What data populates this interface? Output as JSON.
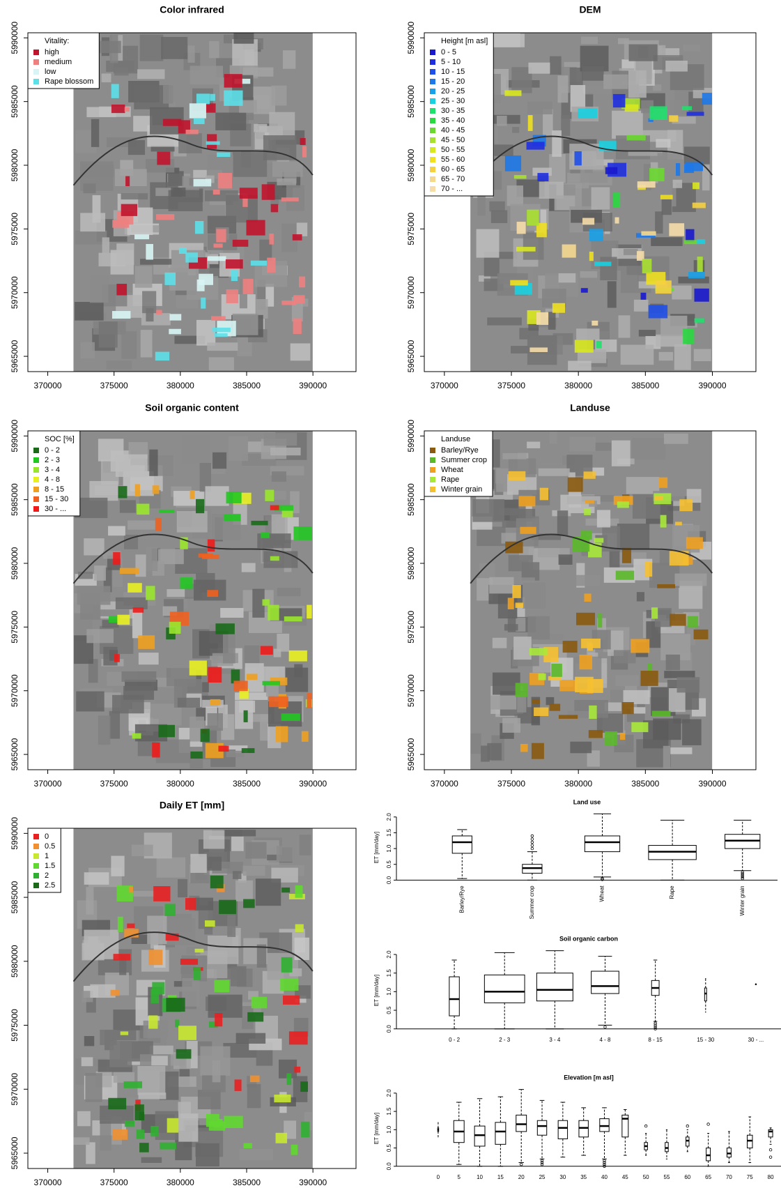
{
  "chart_data": [
    {
      "type": "map",
      "title": "Color infrared",
      "xlim": [
        368500,
        393250
      ],
      "ylim": [
        5963800,
        5990400
      ],
      "xticks": [
        370000,
        375000,
        380000,
        385000,
        390000
      ],
      "yticks": [
        5965000,
        5970000,
        5975000,
        5980000,
        5985000,
        5990000
      ],
      "legend_position": "topleft",
      "legend": {
        "title": "Vitality:",
        "entries": [
          {
            "label": "high",
            "color": "#c0142c"
          },
          {
            "label": "medium",
            "color": "#f08080"
          },
          {
            "label": "low",
            "color": "#d8f4f4"
          },
          {
            "label": "Rape blossom",
            "color": "#5ce0e8"
          }
        ]
      }
    },
    {
      "type": "map",
      "title": "DEM",
      "xlim": [
        368500,
        393250
      ],
      "ylim": [
        5963800,
        5990400
      ],
      "xticks": [
        370000,
        375000,
        380000,
        385000,
        390000
      ],
      "yticks": [
        5965000,
        5970000,
        5975000,
        5980000,
        5985000,
        5990000
      ],
      "legend_position": "topleft",
      "legend": {
        "title": "Height [m asl]",
        "entries": [
          {
            "label": "0 - 5",
            "color": "#1a1acd"
          },
          {
            "label": "5 - 10",
            "color": "#1f2fe0"
          },
          {
            "label": "10 - 15",
            "color": "#1f4fe8"
          },
          {
            "label": "15 - 20",
            "color": "#1e78e8"
          },
          {
            "label": "20 - 25",
            "color": "#1aa0e8"
          },
          {
            "label": "25 - 30",
            "color": "#1ad0e0"
          },
          {
            "label": "30 - 35",
            "color": "#1ee06a"
          },
          {
            "label": "35 - 40",
            "color": "#2ad840"
          },
          {
            "label": "40 - 45",
            "color": "#6ad830"
          },
          {
            "label": "45 - 50",
            "color": "#a8e030"
          },
          {
            "label": "50 - 55",
            "color": "#d8e820"
          },
          {
            "label": "55 - 60",
            "color": "#f0e020"
          },
          {
            "label": "60 - 65",
            "color": "#f5d040"
          },
          {
            "label": "65 - 70",
            "color": "#f5d890"
          },
          {
            "label": "70 - ...",
            "color": "#f5dca8"
          }
        ]
      }
    },
    {
      "type": "map",
      "title": "Soil organic content",
      "xlim": [
        368500,
        393250
      ],
      "ylim": [
        5963800,
        5990400
      ],
      "xticks": [
        370000,
        375000,
        380000,
        385000,
        390000
      ],
      "yticks": [
        5965000,
        5970000,
        5975000,
        5980000,
        5985000,
        5990000
      ],
      "legend_position": "topleft",
      "legend": {
        "title": "SOC [%]",
        "entries": [
          {
            "label": "0 - 2",
            "color": "#1a6a1a"
          },
          {
            "label": "2 - 3",
            "color": "#22c822"
          },
          {
            "label": "3 - 4",
            "color": "#9ae62e"
          },
          {
            "label": "4 - 8",
            "color": "#e8f020"
          },
          {
            "label": "8 - 15",
            "color": "#f0a020"
          },
          {
            "label": "15 - 30",
            "color": "#f06020"
          },
          {
            "label": "30 - ...",
            "color": "#f01a1a"
          }
        ]
      }
    },
    {
      "type": "map",
      "title": "Landuse",
      "xlim": [
        368500,
        393250
      ],
      "ylim": [
        5963800,
        5990400
      ],
      "xticks": [
        370000,
        375000,
        380000,
        385000,
        390000
      ],
      "yticks": [
        5965000,
        5970000,
        5975000,
        5980000,
        5985000,
        5990000
      ],
      "legend_position": "topleft",
      "legend": {
        "title": "Landuse",
        "entries": [
          {
            "label": "Barley/Rye",
            "color": "#8a5a10"
          },
          {
            "label": "Summer crop",
            "color": "#5ab82a"
          },
          {
            "label": "Wheat",
            "color": "#f0a020"
          },
          {
            "label": "Rape",
            "color": "#a8e838"
          },
          {
            "label": "Winter grain",
            "color": "#f5c030"
          }
        ]
      }
    },
    {
      "type": "map",
      "title": "Daily ET [mm]",
      "xlim": [
        368500,
        393250
      ],
      "ylim": [
        5963800,
        5990400
      ],
      "xticks": [
        370000,
        375000,
        380000,
        385000,
        390000
      ],
      "yticks": [
        5965000,
        5970000,
        5975000,
        5980000,
        5985000,
        5990000
      ],
      "legend_position": "topleft",
      "legend": {
        "entries": [
          {
            "label": "0",
            "color": "#e82020"
          },
          {
            "label": "0.5",
            "color": "#f09030"
          },
          {
            "label": "1",
            "color": "#c8e830"
          },
          {
            "label": "1.5",
            "color": "#60d830"
          },
          {
            "label": "2",
            "color": "#30b030"
          },
          {
            "label": "2.5",
            "color": "#1a6a1a"
          }
        ]
      }
    },
    {
      "type": "boxplot",
      "title": "Land use",
      "ylabel": "ET [mm/day]",
      "categories": [
        "Barley/Rye",
        "Summer crop",
        "Wheat",
        "Rape",
        "Winter grain"
      ],
      "boxes": [
        {
          "min": 0.05,
          "q1": 0.85,
          "median": 1.2,
          "q3": 1.4,
          "max": 1.6
        },
        {
          "min": 0.0,
          "q1": 0.22,
          "median": 0.38,
          "q3": 0.5,
          "max": 0.9,
          "outliers": [
            1.0,
            1.1,
            1.2,
            1.3,
            1.4
          ]
        },
        {
          "min": 0.1,
          "q1": 0.9,
          "median": 1.2,
          "q3": 1.4,
          "max": 2.1,
          "outliers": [
            0.02,
            0.05
          ]
        },
        {
          "min": 0.0,
          "q1": 0.65,
          "median": 0.9,
          "q3": 1.1,
          "max": 1.9
        },
        {
          "min": 0.3,
          "q1": 1.0,
          "median": 1.25,
          "q3": 1.45,
          "max": 1.9,
          "outliers": [
            0.05,
            0.1,
            0.15,
            0.2,
            0.25
          ]
        }
      ],
      "ylim": [
        -0.08,
        2.15
      ],
      "yticks": [
        {
          "value": 0,
          "label": "0.0"
        },
        {
          "value": 0.5,
          "label": "0.5"
        },
        {
          "value": 1,
          "label": "1.0"
        },
        {
          "value": 1.5,
          "label": "1.5"
        },
        {
          "value": 2,
          "label": "2.0"
        }
      ]
    },
    {
      "type": "boxplot",
      "title": "Soil organic carbon",
      "ylabel": "ET [mm/day]",
      "categories": [
        "0 - 2",
        "2 - 3",
        "3 - 4",
        "4 - 8",
        "8 - 15",
        "15 - 30",
        "30 - ..."
      ],
      "boxes": [
        {
          "min": 0.0,
          "q1": 0.35,
          "median": 0.8,
          "q3": 1.4,
          "max": 1.85
        },
        {
          "min": 0.0,
          "q1": 0.7,
          "median": 1.0,
          "q3": 1.45,
          "max": 2.05
        },
        {
          "min": 0.0,
          "q1": 0.75,
          "median": 1.05,
          "q3": 1.5,
          "max": 2.1
        },
        {
          "min": 0.1,
          "q1": 0.95,
          "median": 1.15,
          "q3": 1.55,
          "max": 1.95,
          "outliers": [
            0.05
          ]
        },
        {
          "min": 0.2,
          "q1": 0.9,
          "median": 1.1,
          "q3": 1.3,
          "max": 1.85,
          "outliers": [
            0.0,
            0.05,
            0.1,
            0.15
          ]
        },
        {
          "min": 0.45,
          "q1": 0.75,
          "median": 0.95,
          "q3": 1.1,
          "max": 1.35
        },
        {
          "min": 1.2,
          "q1": 1.2,
          "median": 1.2,
          "q3": 1.2,
          "max": 1.2
        }
      ],
      "ylim": [
        -0.08,
        2.15
      ],
      "yticks": [
        {
          "value": 0,
          "label": "0.0"
        },
        {
          "value": 0.5,
          "label": "0.5"
        },
        {
          "value": 1,
          "label": "1.0"
        },
        {
          "value": 1.5,
          "label": "1.5"
        },
        {
          "value": 2,
          "label": "2.0"
        }
      ]
    },
    {
      "type": "boxplot",
      "title": "Elevation [m asl]",
      "ylabel": "ET [mm/day]",
      "categories": [
        "0",
        "5",
        "10",
        "15",
        "20",
        "25",
        "30",
        "35",
        "40",
        "45",
        "50",
        "55",
        "60",
        "65",
        "70",
        "75",
        "80"
      ],
      "boxes": [
        {
          "min": 0.8,
          "q1": 0.95,
          "median": 1.0,
          "q3": 1.05,
          "max": 1.2
        },
        {
          "min": 0.05,
          "q1": 0.65,
          "median": 0.95,
          "q3": 1.25,
          "max": 1.75
        },
        {
          "min": 0.0,
          "q1": 0.55,
          "median": 0.85,
          "q3": 1.1,
          "max": 1.85
        },
        {
          "min": 0.0,
          "q1": 0.6,
          "median": 0.95,
          "q3": 1.2,
          "max": 1.9
        },
        {
          "min": 0.1,
          "q1": 0.95,
          "median": 1.15,
          "q3": 1.4,
          "max": 2.1,
          "outliers": [
            0.05
          ]
        },
        {
          "min": 0.2,
          "q1": 0.85,
          "median": 1.1,
          "q3": 1.25,
          "max": 1.8,
          "outliers": [
            0.05,
            0.1,
            0.15
          ]
        },
        {
          "min": 0.25,
          "q1": 0.75,
          "median": 1.05,
          "q3": 1.25,
          "max": 1.75
        },
        {
          "min": 0.3,
          "q1": 0.8,
          "median": 1.05,
          "q3": 1.25,
          "max": 1.6
        },
        {
          "min": 0.2,
          "q1": 0.95,
          "median": 1.1,
          "q3": 1.3,
          "max": 1.6,
          "outliers": [
            0.0,
            0.05,
            0.1,
            0.15
          ]
        },
        {
          "min": 0.3,
          "q1": 0.8,
          "median": 1.3,
          "q3": 1.4,
          "max": 1.55
        },
        {
          "min": 0.3,
          "q1": 0.45,
          "median": 0.55,
          "q3": 0.65,
          "max": 0.9,
          "outliers": [
            1.1
          ]
        },
        {
          "min": 0.2,
          "q1": 0.4,
          "median": 0.5,
          "q3": 0.65,
          "max": 1.0
        },
        {
          "min": 0.4,
          "q1": 0.55,
          "median": 0.7,
          "q3": 0.8,
          "max": 1.0,
          "outliers": [
            1.1
          ]
        },
        {
          "min": 0.0,
          "q1": 0.15,
          "median": 0.3,
          "q3": 0.5,
          "max": 0.9,
          "outliers": [
            1.15
          ]
        },
        {
          "min": 0.1,
          "q1": 0.25,
          "median": 0.35,
          "q3": 0.5,
          "max": 0.95
        },
        {
          "min": 0.1,
          "q1": 0.5,
          "median": 0.7,
          "q3": 0.85,
          "max": 1.35
        },
        {
          "min": 0.6,
          "q1": 0.8,
          "median": 0.95,
          "q3": 1.0,
          "max": 1.05,
          "outliers": [
            0.25,
            0.45
          ]
        }
      ],
      "ylim": [
        -0.08,
        2.15
      ],
      "yticks": [
        {
          "value": 0,
          "label": "0.0"
        },
        {
          "value": 0.5,
          "label": "0.5"
        },
        {
          "value": 1,
          "label": "1.0"
        },
        {
          "value": 1.5,
          "label": "1.5"
        },
        {
          "value": 2,
          "label": "2.0"
        }
      ]
    }
  ]
}
